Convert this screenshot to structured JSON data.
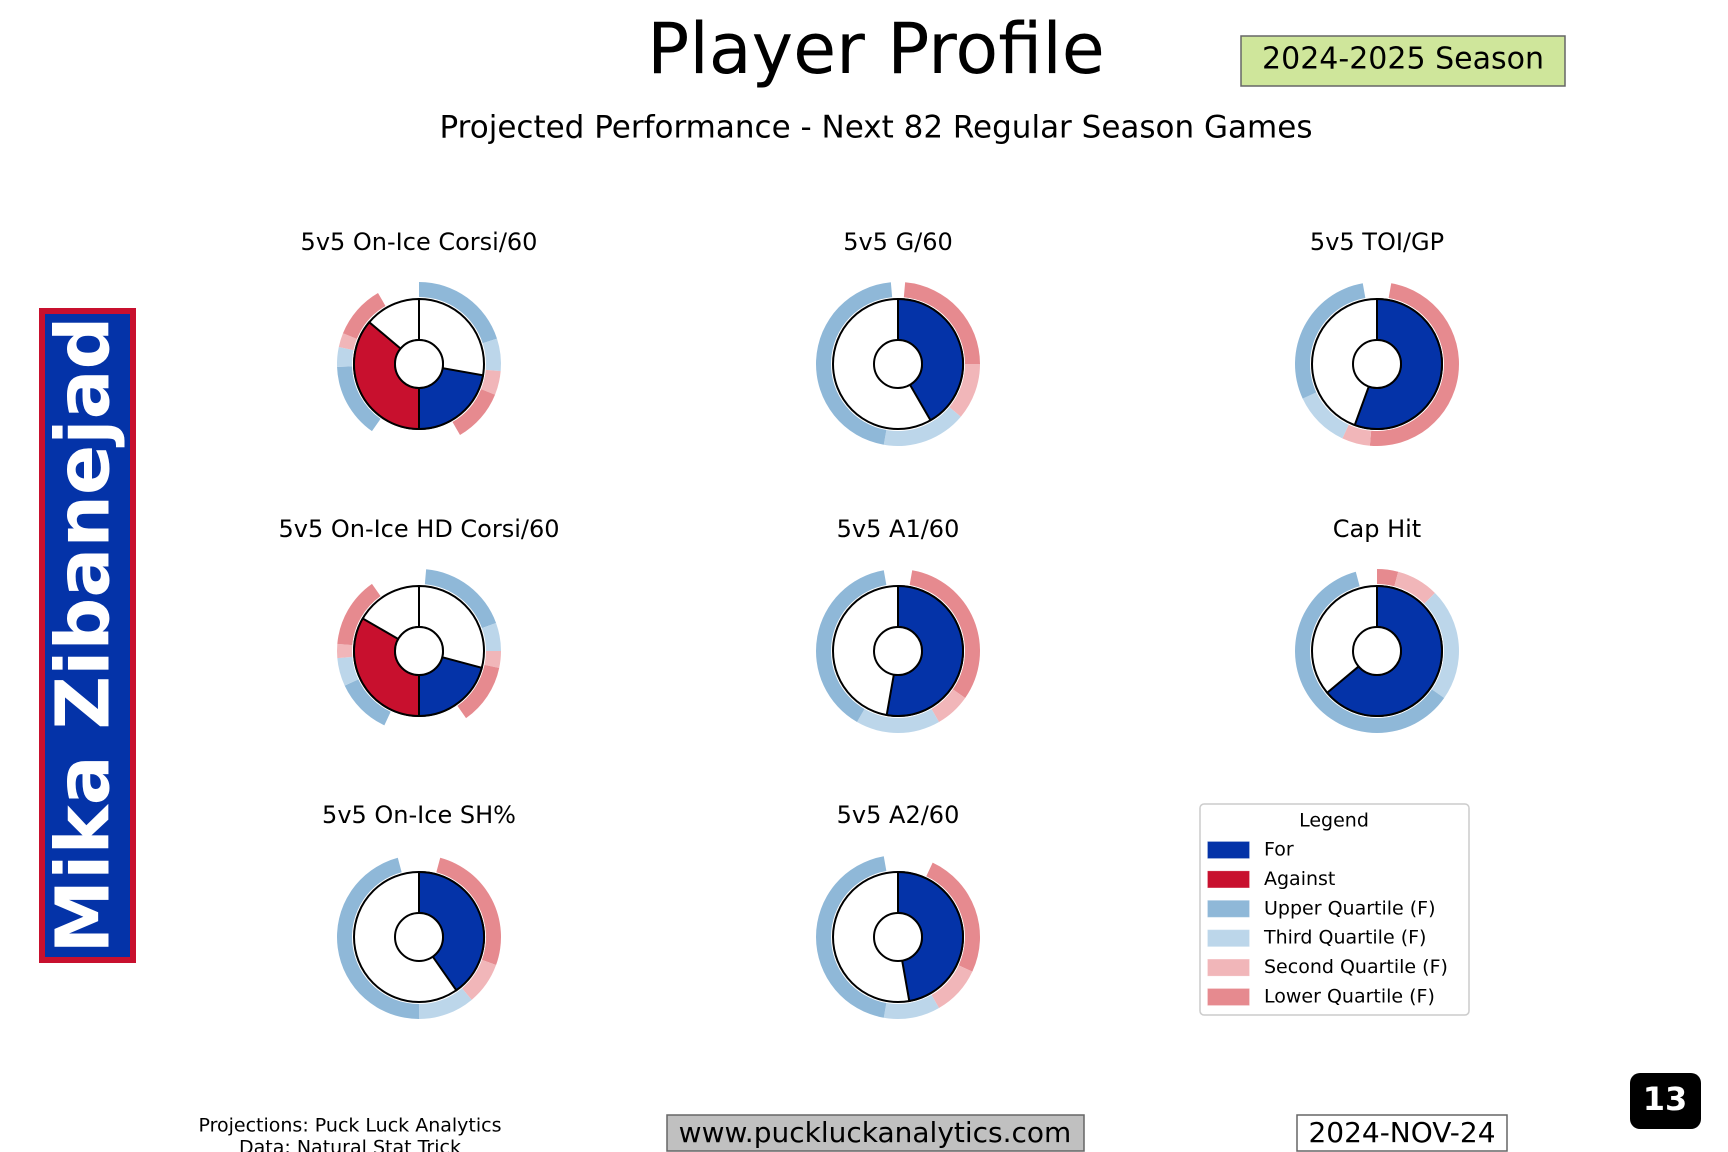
{
  "header": {
    "title": "Player Profile",
    "season": "2024-2025 Season",
    "subtitle": "Projected Performance - Next 82 Regular Season Games"
  },
  "player": "Mika Zibanejad",
  "legend": {
    "title": "Legend",
    "items": [
      {
        "name": "For",
        "color": "#0433a8"
      },
      {
        "name": "Against",
        "color": "#c8102e"
      },
      {
        "name": "Upper Quartile (F)",
        "color": "#8fb8d8"
      },
      {
        "name": "Third Quartile (F)",
        "color": "#bcd6ea"
      },
      {
        "name": "Second Quartile (F)",
        "color": "#f1b6b9"
      },
      {
        "name": "Lower Quartile (F)",
        "color": "#e68a8f"
      }
    ]
  },
  "chart_data": [
    {
      "type": "donut",
      "title": "5v5 On-Ice Corsi/60",
      "for_arc": [
        100,
        180
      ],
      "against_arc": [
        180,
        310
      ],
      "bands": [
        {
          "q": 2,
          "from": 0,
          "to": 72
        },
        {
          "q": 3,
          "from": 72,
          "to": 95
        },
        {
          "q": 4,
          "from": 95,
          "to": 112
        },
        {
          "q": 5,
          "from": 112,
          "to": 150
        },
        {
          "q": 2,
          "from": 215,
          "to": 268
        },
        {
          "q": 3,
          "from": 268,
          "to": 282
        },
        {
          "q": 4,
          "from": 282,
          "to": 292
        },
        {
          "q": 5,
          "from": 292,
          "to": 330
        }
      ]
    },
    {
      "type": "donut",
      "title": "5v5 G/60",
      "for_arc": [
        0,
        150
      ],
      "bands": [
        {
          "q": 5,
          "from": 5,
          "to": 90
        },
        {
          "q": 4,
          "from": 90,
          "to": 130
        },
        {
          "q": 3,
          "from": 130,
          "to": 190
        },
        {
          "q": 2,
          "from": 190,
          "to": 355
        }
      ]
    },
    {
      "type": "donut",
      "title": "5v5 TOI/GP",
      "for_arc": [
        0,
        200
      ],
      "bands": [
        {
          "q": 5,
          "from": 10,
          "to": 185
        },
        {
          "q": 4,
          "from": 185,
          "to": 205
        },
        {
          "q": 3,
          "from": 205,
          "to": 245
        },
        {
          "q": 2,
          "from": 245,
          "to": 350
        }
      ]
    },
    {
      "type": "donut",
      "title": "5v5 On-Ice HD Corsi/60",
      "for_arc": [
        105,
        180
      ],
      "against_arc": [
        180,
        300
      ],
      "bands": [
        {
          "q": 2,
          "from": 5,
          "to": 70
        },
        {
          "q": 3,
          "from": 70,
          "to": 90
        },
        {
          "q": 4,
          "from": 90,
          "to": 102
        },
        {
          "q": 5,
          "from": 102,
          "to": 145
        },
        {
          "q": 2,
          "from": 205,
          "to": 245
        },
        {
          "q": 3,
          "from": 245,
          "to": 265
        },
        {
          "q": 4,
          "from": 265,
          "to": 275
        },
        {
          "q": 5,
          "from": 275,
          "to": 325
        }
      ]
    },
    {
      "type": "donut",
      "title": "5v5 A1/60",
      "for_arc": [
        0,
        190
      ],
      "bands": [
        {
          "q": 5,
          "from": 10,
          "to": 125
        },
        {
          "q": 4,
          "from": 125,
          "to": 150
        },
        {
          "q": 3,
          "from": 150,
          "to": 210
        },
        {
          "q": 2,
          "from": 210,
          "to": 350
        }
      ]
    },
    {
      "type": "donut",
      "title": "Cap Hit",
      "for_arc": [
        0,
        230
      ],
      "bands": [
        {
          "q": 5,
          "from": 0,
          "to": 15
        },
        {
          "q": 4,
          "from": 15,
          "to": 45
        },
        {
          "q": 3,
          "from": 45,
          "to": 125
        },
        {
          "q": 2,
          "from": 125,
          "to": 345
        }
      ]
    },
    {
      "type": "donut",
      "title": "5v5 On-Ice SH%",
      "for_arc": [
        0,
        145
      ],
      "bands": [
        {
          "q": 5,
          "from": 15,
          "to": 110
        },
        {
          "q": 4,
          "from": 110,
          "to": 140
        },
        {
          "q": 3,
          "from": 140,
          "to": 180
        },
        {
          "q": 2,
          "from": 180,
          "to": 345
        }
      ]
    },
    {
      "type": "donut",
      "title": "5v5 A2/60",
      "for_arc": [
        0,
        170
      ],
      "bands": [
        {
          "q": 5,
          "from": 25,
          "to": 115
        },
        {
          "q": 4,
          "from": 115,
          "to": 150
        },
        {
          "q": 3,
          "from": 150,
          "to": 190
        },
        {
          "q": 2,
          "from": 190,
          "to": 350
        }
      ]
    }
  ],
  "footer": {
    "credits": [
      "Projections: Puck Luck Analytics",
      "Data: Natural Stat Trick"
    ],
    "website": "www.puckluckanalytics.com",
    "date": "2024-NOV-24"
  },
  "page_number": "13"
}
